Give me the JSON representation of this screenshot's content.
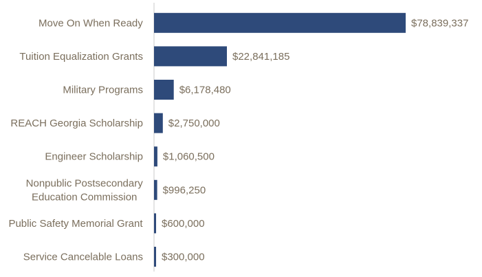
{
  "chart_data": {
    "type": "bar",
    "orientation": "horizontal",
    "title": "",
    "xlabel": "",
    "ylabel": "",
    "categories": [
      [
        "Move On When Ready"
      ],
      [
        "Tuition Equalization Grants"
      ],
      [
        "Military Programs"
      ],
      [
        "REACH Georgia Scholarship"
      ],
      [
        "Engineer Scholarship"
      ],
      [
        "Nonpublic Postsecondary",
        "Education Commission"
      ],
      [
        "Public Safety Memorial Grant"
      ],
      [
        "Service Cancelable Loans"
      ]
    ],
    "values": [
      78839337,
      22841185,
      6178480,
      2750000,
      1060500,
      996250,
      600000,
      300000
    ],
    "value_labels": [
      "$78,839,337",
      "$22,841,185",
      "$6,178,480",
      "$2,750,000",
      "$1,060,500",
      "$996,250",
      "$600,000",
      "$300,000"
    ],
    "grid": false,
    "legend": "none",
    "colors": {
      "bar": "#2e4a7a",
      "text": "#7a6e5c",
      "axis": "#c8c8c8"
    }
  }
}
